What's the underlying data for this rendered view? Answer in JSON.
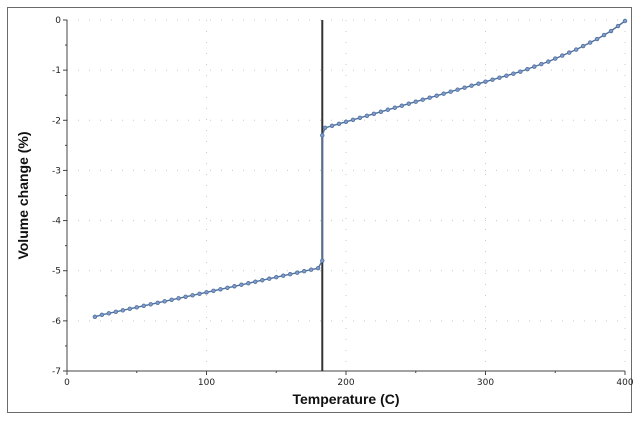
{
  "chart_data": {
    "type": "line",
    "title": "",
    "xlabel": "Temperature (C)",
    "ylabel": "Volume change (%)",
    "xlim": [
      0,
      400
    ],
    "ylim": [
      -7,
      0
    ],
    "x_ticks": [
      0,
      100,
      200,
      300,
      400
    ],
    "y_ticks": [
      0,
      -1,
      -2,
      -3,
      -4,
      -5,
      -6,
      -7
    ],
    "x_tick_labels": [
      "0",
      "100",
      "200",
      "300",
      "400"
    ],
    "y_tick_labels": [
      "0",
      "-1",
      "-2",
      "-3",
      "-4",
      "-5",
      "-6",
      "-7"
    ],
    "grid": "dotted",
    "legend": "none",
    "vertical_marker_x": 183,
    "series": [
      {
        "color": "#4f6f9c",
        "marker": "circle",
        "x": [
          20,
          25,
          30,
          35,
          40,
          45,
          50,
          55,
          60,
          65,
          70,
          75,
          80,
          85,
          90,
          95,
          100,
          105,
          110,
          115,
          120,
          125,
          130,
          135,
          140,
          145,
          150,
          155,
          160,
          165,
          170,
          175,
          180,
          183,
          183,
          185,
          190,
          195,
          200,
          205,
          210,
          215,
          220,
          225,
          230,
          235,
          240,
          245,
          250,
          255,
          260,
          265,
          270,
          275,
          280,
          285,
          290,
          295,
          300,
          305,
          310,
          315,
          320,
          325,
          330,
          335,
          340,
          345,
          350,
          355,
          360,
          365,
          370,
          375,
          380,
          385,
          390,
          395,
          400
        ],
        "y": [
          -5.92,
          -5.88,
          -5.85,
          -5.82,
          -5.79,
          -5.76,
          -5.73,
          -5.7,
          -5.67,
          -5.64,
          -5.61,
          -5.58,
          -5.55,
          -5.52,
          -5.49,
          -5.46,
          -5.43,
          -5.4,
          -5.37,
          -5.34,
          -5.31,
          -5.28,
          -5.25,
          -5.22,
          -5.19,
          -5.16,
          -5.13,
          -5.1,
          -5.07,
          -5.04,
          -5.01,
          -4.98,
          -4.95,
          -4.8,
          -2.3,
          -2.15,
          -2.11,
          -2.07,
          -2.03,
          -1.99,
          -1.95,
          -1.91,
          -1.87,
          -1.83,
          -1.79,
          -1.75,
          -1.71,
          -1.67,
          -1.63,
          -1.59,
          -1.55,
          -1.51,
          -1.47,
          -1.43,
          -1.39,
          -1.35,
          -1.31,
          -1.27,
          -1.23,
          -1.19,
          -1.15,
          -1.11,
          -1.07,
          -1.03,
          -0.98,
          -0.93,
          -0.88,
          -0.83,
          -0.77,
          -0.71,
          -0.65,
          -0.59,
          -0.52,
          -0.45,
          -0.38,
          -0.3,
          -0.22,
          -0.12,
          -0.02
        ]
      }
    ]
  }
}
